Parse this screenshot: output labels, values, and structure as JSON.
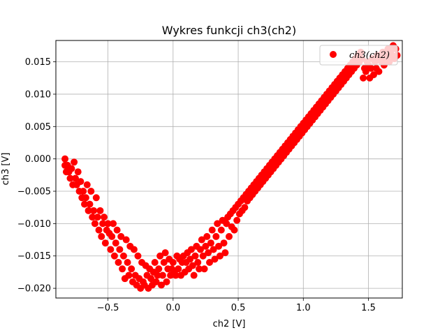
{
  "chart_data": {
    "type": "scatter",
    "title": "Wykres funkcji ch3(ch2)",
    "xlabel": "ch2 [V]",
    "ylabel": "ch3 [V]",
    "xlim": [
      -0.9,
      1.76
    ],
    "ylim": [
      -0.0215,
      0.0183
    ],
    "xticks": [
      -0.5,
      0.0,
      0.5,
      1.0,
      1.5
    ],
    "xtick_labels": [
      "−0.5",
      "0.0",
      "0.5",
      "1.0",
      "1.5"
    ],
    "yticks": [
      0.015,
      0.01,
      0.005,
      0.0,
      -0.005,
      -0.01,
      -0.015,
      -0.02
    ],
    "ytick_labels": [
      "0.015",
      "0.010",
      "0.005",
      "0.000",
      "−0.005",
      "−0.010",
      "−0.015",
      "−0.020"
    ],
    "grid": true,
    "legend_position": "top-right",
    "series": [
      {
        "name": "ch3(ch2)",
        "color": "#ff0000",
        "marker": "circle",
        "points": [
          [
            -0.83,
            0.0
          ],
          [
            -0.83,
            -0.001
          ],
          [
            -0.82,
            -0.002
          ],
          [
            -0.81,
            -0.001
          ],
          [
            -0.8,
            -0.002
          ],
          [
            -0.79,
            -0.003
          ],
          [
            -0.78,
            -0.0015
          ],
          [
            -0.77,
            -0.004
          ],
          [
            -0.76,
            -0.0005
          ],
          [
            -0.75,
            -0.003
          ],
          [
            -0.74,
            -0.004
          ],
          [
            -0.73,
            -0.002
          ],
          [
            -0.72,
            -0.005
          ],
          [
            -0.71,
            -0.0035
          ],
          [
            -0.7,
            -0.006
          ],
          [
            -0.69,
            -0.005
          ],
          [
            -0.68,
            -0.007
          ],
          [
            -0.67,
            -0.006
          ],
          [
            -0.66,
            -0.004
          ],
          [
            -0.65,
            -0.008
          ],
          [
            -0.64,
            -0.007
          ],
          [
            -0.63,
            -0.005
          ],
          [
            -0.62,
            -0.009
          ],
          [
            -0.61,
            -0.008
          ],
          [
            -0.6,
            -0.01
          ],
          [
            -0.59,
            -0.006
          ],
          [
            -0.58,
            -0.009
          ],
          [
            -0.57,
            -0.011
          ],
          [
            -0.56,
            -0.008
          ],
          [
            -0.55,
            -0.012
          ],
          [
            -0.54,
            -0.01
          ],
          [
            -0.53,
            -0.009
          ],
          [
            -0.52,
            -0.013
          ],
          [
            -0.51,
            -0.011
          ],
          [
            -0.5,
            -0.01
          ],
          [
            -0.49,
            -0.0115
          ],
          [
            -0.48,
            -0.014
          ],
          [
            -0.47,
            -0.012
          ],
          [
            -0.46,
            -0.01
          ],
          [
            -0.45,
            -0.015
          ],
          [
            -0.44,
            -0.013
          ],
          [
            -0.43,
            -0.011
          ],
          [
            -0.42,
            -0.016
          ],
          [
            -0.41,
            -0.014
          ],
          [
            -0.4,
            -0.012
          ],
          [
            -0.39,
            -0.017
          ],
          [
            -0.38,
            -0.015
          ],
          [
            -0.37,
            -0.0185
          ],
          [
            -0.36,
            -0.0125
          ],
          [
            -0.35,
            -0.016
          ],
          [
            -0.34,
            -0.018
          ],
          [
            -0.33,
            -0.0135
          ],
          [
            -0.32,
            -0.017
          ],
          [
            -0.31,
            -0.019
          ],
          [
            -0.3,
            -0.014
          ],
          [
            -0.29,
            -0.018
          ],
          [
            -0.28,
            -0.0195
          ],
          [
            -0.27,
            -0.015
          ],
          [
            -0.26,
            -0.0185
          ],
          [
            -0.25,
            -0.02
          ],
          [
            -0.24,
            -0.016
          ],
          [
            -0.23,
            -0.019
          ],
          [
            -0.22,
            -0.0195
          ],
          [
            -0.21,
            -0.0165
          ],
          [
            -0.2,
            -0.018
          ],
          [
            -0.19,
            -0.02
          ],
          [
            -0.18,
            -0.017
          ],
          [
            -0.17,
            -0.0185
          ],
          [
            -0.16,
            -0.0195
          ],
          [
            -0.15,
            -0.0175
          ],
          [
            -0.14,
            -0.016
          ],
          [
            -0.13,
            -0.019
          ],
          [
            -0.12,
            -0.018
          ],
          [
            -0.11,
            -0.017
          ],
          [
            -0.1,
            -0.015
          ],
          [
            -0.09,
            -0.0195
          ],
          [
            -0.08,
            -0.018
          ],
          [
            -0.07,
            -0.016
          ],
          [
            -0.06,
            -0.0145
          ],
          [
            -0.05,
            -0.019
          ],
          [
            -0.04,
            -0.017
          ],
          [
            -0.03,
            -0.0155
          ],
          [
            -0.02,
            -0.018
          ],
          [
            -0.01,
            -0.017
          ],
          [
            0.0,
            -0.016
          ],
          [
            0.01,
            -0.0175
          ],
          [
            0.02,
            -0.018
          ],
          [
            0.03,
            -0.015
          ],
          [
            0.04,
            -0.017
          ],
          [
            0.05,
            -0.0155
          ],
          [
            0.06,
            -0.018
          ],
          [
            0.07,
            -0.016
          ],
          [
            0.08,
            -0.015
          ],
          [
            0.09,
            -0.0175
          ],
          [
            0.1,
            -0.016
          ],
          [
            0.11,
            -0.0145
          ],
          [
            0.12,
            -0.017
          ],
          [
            0.13,
            -0.0155
          ],
          [
            0.14,
            -0.014
          ],
          [
            0.15,
            -0.0165
          ],
          [
            0.16,
            -0.018
          ],
          [
            0.17,
            -0.015
          ],
          [
            0.18,
            -0.0135
          ],
          [
            0.19,
            -0.016
          ],
          [
            0.2,
            -0.017
          ],
          [
            0.21,
            -0.014
          ],
          [
            0.22,
            -0.0125
          ],
          [
            0.23,
            -0.015
          ],
          [
            0.24,
            -0.017
          ],
          [
            0.25,
            -0.0135
          ],
          [
            0.26,
            -0.012
          ],
          [
            0.27,
            -0.0145
          ],
          [
            0.28,
            -0.016
          ],
          [
            0.29,
            -0.013
          ],
          [
            0.3,
            -0.011
          ],
          [
            0.31,
            -0.014
          ],
          [
            0.32,
            -0.0155
          ],
          [
            0.33,
            -0.012
          ],
          [
            0.34,
            -0.01
          ],
          [
            0.35,
            -0.0135
          ],
          [
            0.36,
            -0.015
          ],
          [
            0.37,
            -0.011
          ],
          [
            0.38,
            -0.0095
          ],
          [
            0.39,
            -0.013
          ],
          [
            0.4,
            -0.0145
          ],
          [
            0.41,
            -0.01
          ],
          [
            0.42,
            -0.009
          ],
          [
            0.43,
            -0.012
          ],
          [
            0.44,
            -0.0085
          ],
          [
            0.45,
            -0.0105
          ],
          [
            0.46,
            -0.008
          ],
          [
            0.47,
            -0.011
          ],
          [
            0.48,
            -0.0075
          ],
          [
            0.49,
            -0.0095
          ],
          [
            0.5,
            -0.007
          ],
          [
            0.51,
            -0.0085
          ],
          [
            0.52,
            -0.0065
          ],
          [
            0.53,
            -0.008
          ],
          [
            0.54,
            -0.006
          ],
          [
            0.55,
            -0.0075
          ],
          [
            0.56,
            -0.0055
          ],
          [
            0.57,
            -0.0065
          ],
          [
            0.58,
            -0.005
          ],
          [
            0.59,
            -0.006
          ],
          [
            0.6,
            -0.0045
          ],
          [
            0.61,
            -0.0055
          ],
          [
            0.62,
            -0.004
          ],
          [
            0.63,
            -0.005
          ],
          [
            0.64,
            -0.0035
          ],
          [
            0.65,
            -0.0045
          ],
          [
            0.66,
            -0.003
          ],
          [
            0.67,
            -0.004
          ],
          [
            0.68,
            -0.0025
          ],
          [
            0.69,
            -0.0035
          ],
          [
            0.7,
            -0.002
          ],
          [
            0.71,
            -0.003
          ],
          [
            0.72,
            -0.0015
          ],
          [
            0.73,
            -0.0025
          ],
          [
            0.74,
            -0.001
          ],
          [
            0.75,
            -0.002
          ],
          [
            0.76,
            -0.0005
          ],
          [
            0.77,
            -0.0015
          ],
          [
            0.78,
            0.0
          ],
          [
            0.79,
            -0.001
          ],
          [
            0.8,
            0.0005
          ],
          [
            0.81,
            -0.0005
          ],
          [
            0.82,
            0.001
          ],
          [
            0.83,
            0.0
          ],
          [
            0.84,
            0.0015
          ],
          [
            0.85,
            0.0005
          ],
          [
            0.86,
            0.002
          ],
          [
            0.87,
            0.001
          ],
          [
            0.88,
            0.0025
          ],
          [
            0.89,
            0.0015
          ],
          [
            0.9,
            0.003
          ],
          [
            0.91,
            0.002
          ],
          [
            0.92,
            0.0035
          ],
          [
            0.93,
            0.0025
          ],
          [
            0.94,
            0.004
          ],
          [
            0.95,
            0.003
          ],
          [
            0.96,
            0.0045
          ],
          [
            0.97,
            0.0035
          ],
          [
            0.98,
            0.005
          ],
          [
            0.99,
            0.004
          ],
          [
            1.0,
            0.0055
          ],
          [
            1.01,
            0.0045
          ],
          [
            1.02,
            0.006
          ],
          [
            1.03,
            0.005
          ],
          [
            1.04,
            0.0065
          ],
          [
            1.05,
            0.0055
          ],
          [
            1.06,
            0.007
          ],
          [
            1.07,
            0.006
          ],
          [
            1.08,
            0.0075
          ],
          [
            1.09,
            0.0065
          ],
          [
            1.1,
            0.008
          ],
          [
            1.11,
            0.007
          ],
          [
            1.12,
            0.0085
          ],
          [
            1.13,
            0.0075
          ],
          [
            1.14,
            0.009
          ],
          [
            1.15,
            0.008
          ],
          [
            1.16,
            0.0095
          ],
          [
            1.17,
            0.0085
          ],
          [
            1.18,
            0.01
          ],
          [
            1.19,
            0.009
          ],
          [
            1.2,
            0.0105
          ],
          [
            1.21,
            0.0095
          ],
          [
            1.22,
            0.011
          ],
          [
            1.23,
            0.01
          ],
          [
            1.24,
            0.0115
          ],
          [
            1.25,
            0.0105
          ],
          [
            1.26,
            0.012
          ],
          [
            1.27,
            0.011
          ],
          [
            1.28,
            0.0125
          ],
          [
            1.29,
            0.0115
          ],
          [
            1.3,
            0.013
          ],
          [
            1.31,
            0.012
          ],
          [
            1.32,
            0.0135
          ],
          [
            1.33,
            0.0125
          ],
          [
            1.34,
            0.014
          ],
          [
            1.35,
            0.013
          ],
          [
            1.36,
            0.0145
          ],
          [
            1.37,
            0.0135
          ],
          [
            1.38,
            0.015
          ],
          [
            1.39,
            0.014
          ],
          [
            1.4,
            0.0155
          ],
          [
            1.41,
            0.0145
          ],
          [
            1.42,
            0.016
          ],
          [
            1.43,
            0.015
          ],
          [
            1.44,
            0.0165
          ],
          [
            1.45,
            0.0155
          ],
          [
            1.46,
            0.0125
          ],
          [
            1.47,
            0.014
          ],
          [
            1.48,
            0.0135
          ],
          [
            1.49,
            0.015
          ],
          [
            1.5,
            0.0145
          ],
          [
            1.51,
            0.0125
          ],
          [
            1.52,
            0.014
          ],
          [
            1.53,
            0.0155
          ],
          [
            1.54,
            0.013
          ],
          [
            1.55,
            0.015
          ],
          [
            1.56,
            0.014
          ],
          [
            1.57,
            0.016
          ],
          [
            1.58,
            0.0135
          ],
          [
            1.59,
            0.0155
          ],
          [
            1.6,
            0.015
          ],
          [
            1.61,
            0.0165
          ],
          [
            1.62,
            0.0145
          ],
          [
            1.63,
            0.016
          ],
          [
            1.64,
            0.0155
          ],
          [
            1.65,
            0.017
          ],
          [
            1.66,
            0.015
          ],
          [
            1.67,
            0.0165
          ],
          [
            1.68,
            0.016
          ],
          [
            1.69,
            0.0175
          ],
          [
            1.7,
            0.0155
          ],
          [
            1.71,
            0.017
          ],
          [
            1.72,
            0.016
          ]
        ]
      }
    ]
  }
}
